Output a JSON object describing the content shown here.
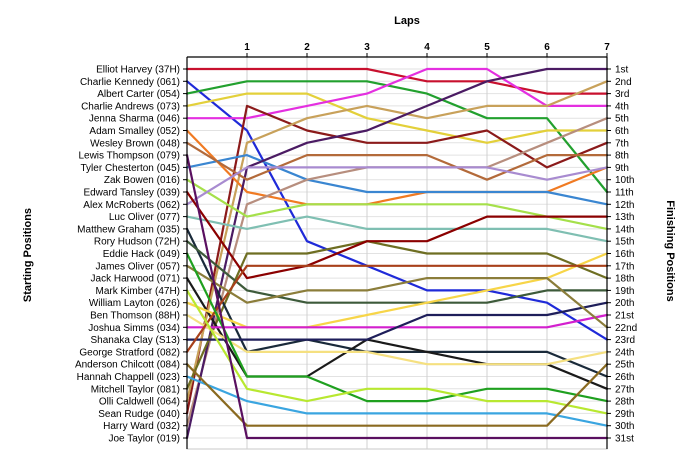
{
  "chart_data": {
    "type": "line",
    "title": "",
    "xlabel": "Laps",
    "ylabel_left": "Starting Positions",
    "ylabel_right": "Finishing Positions",
    "x": [
      0,
      1,
      2,
      3,
      4,
      5,
      6,
      7
    ],
    "x_tick_labels": [
      "1",
      "2",
      "3",
      "4",
      "5",
      "6",
      "7"
    ],
    "ylim": [
      1,
      31
    ],
    "y_inverted": true,
    "grid": true,
    "start_labels": [
      "Elliot Harvey (37H)",
      "Charlie Kennedy (061)",
      "Albert Carter (054)",
      "Charlie Andrews (073)",
      "Jenna Sharma (046)",
      "Adam Smalley (052)",
      "Wesley Brown (048)",
      "Lewis Thompson (079)",
      "Tyler Chesterton (045)",
      "Zak Bowen (016)",
      "Edward Tansley (039)",
      "Alex McRoberts (062)",
      "Luc Oliver (077)",
      "Matthew Graham (035)",
      "Rory Hudson (72H)",
      "Eddie Hack (049)",
      "James Oliver (057)",
      "Jack Harwood (071)",
      "Mark Kimber (47H)",
      "William Layton (026)",
      "Ben Thomson (88H)",
      "Joshua Simms (034)",
      "Shanaka Clay (S13)",
      "George Stratford (082)",
      "Anderson Chilcott (084)",
      "Hannah Chappell (023)",
      "Mitchell Taylor (081)",
      "Olli Caldwell (064)",
      "Sean Rudge (040)",
      "Harry Ward (032)",
      "Joe Taylor (019)"
    ],
    "finish_labels": [
      "1st",
      "2nd",
      "3rd",
      "4th",
      "5th",
      "6th",
      "7th",
      "8th",
      "9th",
      "10th",
      "11th",
      "12th",
      "13th",
      "14th",
      "15th",
      "16th",
      "17th",
      "18th",
      "19th",
      "20th",
      "21st",
      "22nd",
      "23rd",
      "24th",
      "25th",
      "26th",
      "27th",
      "28th",
      "29th",
      "30th",
      "31st"
    ],
    "series": [
      {
        "color": "#c8102e",
        "values": [
          1,
          1,
          1,
          1,
          2,
          2,
          3,
          3
        ]
      },
      {
        "color": "#1f2ad8",
        "values": [
          2,
          6,
          15,
          17,
          19,
          19,
          20,
          23
        ]
      },
      {
        "color": "#22a02e",
        "values": [
          3,
          2,
          2,
          2,
          3,
          5,
          5,
          11
        ]
      },
      {
        "color": "#e3d03a",
        "values": [
          4,
          3,
          3,
          5,
          6,
          7,
          6,
          6
        ]
      },
      {
        "color": "#e42fe0",
        "values": [
          5,
          5,
          4,
          3,
          1,
          1,
          4,
          4
        ]
      },
      {
        "color": "#8b1a1a",
        "values": [
          29,
          4,
          6,
          7,
          7,
          6,
          9,
          7
        ]
      },
      {
        "color": "#c8a15a",
        "values": [
          28,
          7,
          5,
          4,
          5,
          4,
          4,
          2
        ]
      },
      {
        "color": "#f07a22",
        "values": [
          6,
          11,
          12,
          12,
          11,
          11,
          11,
          9
        ]
      },
      {
        "color": "#3a86d1",
        "values": [
          9,
          8,
          10,
          11,
          11,
          11,
          11,
          12
        ]
      },
      {
        "color": "#b78e7e",
        "values": [
          30,
          12,
          10,
          9,
          9,
          9,
          7,
          5
        ]
      },
      {
        "color": "#4b1b63",
        "values": [
          31,
          9,
          7,
          6,
          4,
          2,
          1,
          1
        ]
      },
      {
        "color": "#a5e04a",
        "values": [
          10,
          13,
          12,
          12,
          12,
          12,
          13,
          14
        ]
      },
      {
        "color": "#b36a3a",
        "values": [
          7,
          10,
          8,
          8,
          8,
          10,
          8,
          8
        ]
      },
      {
        "color": "#7fbfb2",
        "values": [
          13,
          14,
          13,
          14,
          14,
          14,
          14,
          15
        ]
      },
      {
        "color": "#a88bd0",
        "values": [
          12,
          9,
          9,
          9,
          9,
          9,
          10,
          9
        ]
      },
      {
        "color": "#6e6e22",
        "values": [
          27,
          16,
          16,
          15,
          16,
          16,
          16,
          18
        ]
      },
      {
        "color": "#8b0000",
        "values": [
          11,
          18,
          17,
          15,
          15,
          13,
          13,
          13
        ]
      },
      {
        "color": "#1a2a3a",
        "values": [
          14,
          24,
          23,
          24,
          24,
          24,
          24,
          26
        ]
      },
      {
        "color": "#3d5a3a",
        "values": [
          15,
          19,
          20,
          20,
          20,
          20,
          19,
          19
        ]
      },
      {
        "color": "#1a1a1a",
        "values": [
          18,
          26,
          26,
          23,
          24,
          25,
          25,
          27
        ]
      },
      {
        "color": "#f7d548",
        "values": [
          20,
          22,
          22,
          21,
          20,
          19,
          18,
          16
        ]
      },
      {
        "color": "#d31fce",
        "values": [
          22,
          22,
          22,
          22,
          22,
          22,
          22,
          21
        ]
      },
      {
        "color": "#1e1e5a",
        "values": [
          23,
          23,
          23,
          23,
          21,
          21,
          21,
          20
        ]
      },
      {
        "color": "#f5e080",
        "values": [
          21,
          24,
          24,
          24,
          25,
          25,
          25,
          24
        ]
      },
      {
        "color": "#a8401a",
        "values": [
          24,
          17,
          17,
          17,
          17,
          17,
          17,
          17
        ]
      },
      {
        "color": "#8b7d3a",
        "values": [
          17,
          20,
          19,
          19,
          18,
          18,
          18,
          22
        ]
      },
      {
        "color": "#3aa5e0",
        "values": [
          26,
          28,
          29,
          29,
          29,
          29,
          29,
          30
        ]
      },
      {
        "color": "#1fa01f",
        "values": [
          16,
          26,
          26,
          28,
          28,
          27,
          27,
          28
        ]
      },
      {
        "color": "#b8e830",
        "values": [
          19,
          27,
          28,
          27,
          27,
          28,
          28,
          29
        ]
      },
      {
        "color": "#8a6a20",
        "values": [
          25,
          30,
          30,
          30,
          30,
          30,
          30,
          25
        ]
      },
      {
        "color": "#5a1060",
        "values": [
          8,
          31,
          31,
          31,
          31,
          31,
          31,
          31
        ]
      }
    ]
  }
}
